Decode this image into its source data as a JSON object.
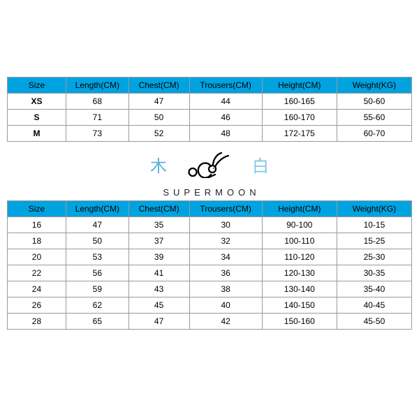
{
  "colors": {
    "header_bg": "#00a3e0",
    "header_text": "#000000",
    "cell_bg": "#ffffff",
    "cell_text": "#000000",
    "border": "#9a9a9a",
    "cjk_left": "#59b2d9",
    "cjk_right": "#7fc6e8",
    "brand_text": "#222222"
  },
  "typography": {
    "base_font": "Arial, Helvetica, sans-serif",
    "cell_fontsize": 12,
    "header_fontsize": 12,
    "cjk_fontsize": 24,
    "brand_fontsize": 13,
    "brand_letterspacing": 6
  },
  "tables": {
    "columns": [
      "Size",
      "Length(CM)",
      "Chest(CM)",
      "Trousers(CM)",
      "Height(CM)",
      "Weight(KG)"
    ],
    "col_widths_pct": [
      14.5,
      15.5,
      15,
      18,
      18.5,
      18.5
    ],
    "adult": {
      "rows": [
        [
          "XS",
          "68",
          "47",
          "44",
          "160-165",
          "50-60"
        ],
        [
          "S",
          "71",
          "50",
          "46",
          "160-170",
          "55-60"
        ],
        [
          "M",
          "73",
          "52",
          "48",
          "172-175",
          "60-70"
        ]
      ],
      "first_col_bold": true
    },
    "kids": {
      "rows": [
        [
          "16",
          "47",
          "35",
          "30",
          "90-100",
          "10-15"
        ],
        [
          "18",
          "50",
          "37",
          "32",
          "100-110",
          "15-25"
        ],
        [
          "20",
          "53",
          "39",
          "34",
          "110-120",
          "25-30"
        ],
        [
          "22",
          "56",
          "41",
          "36",
          "120-130",
          "30-35"
        ],
        [
          "24",
          "59",
          "43",
          "38",
          "130-140",
          "35-40"
        ],
        [
          "26",
          "62",
          "45",
          "40",
          "140-150",
          "40-45"
        ],
        [
          "28",
          "65",
          "47",
          "42",
          "150-160",
          "45-50"
        ]
      ],
      "first_col_bold": false
    }
  },
  "logo": {
    "left_glyph": "木",
    "right_glyph": "白",
    "brand": "SUPERMOON",
    "svg": {
      "width": 70,
      "height": 38,
      "stroke": "#000000",
      "stroke_width": 2.3
    }
  }
}
